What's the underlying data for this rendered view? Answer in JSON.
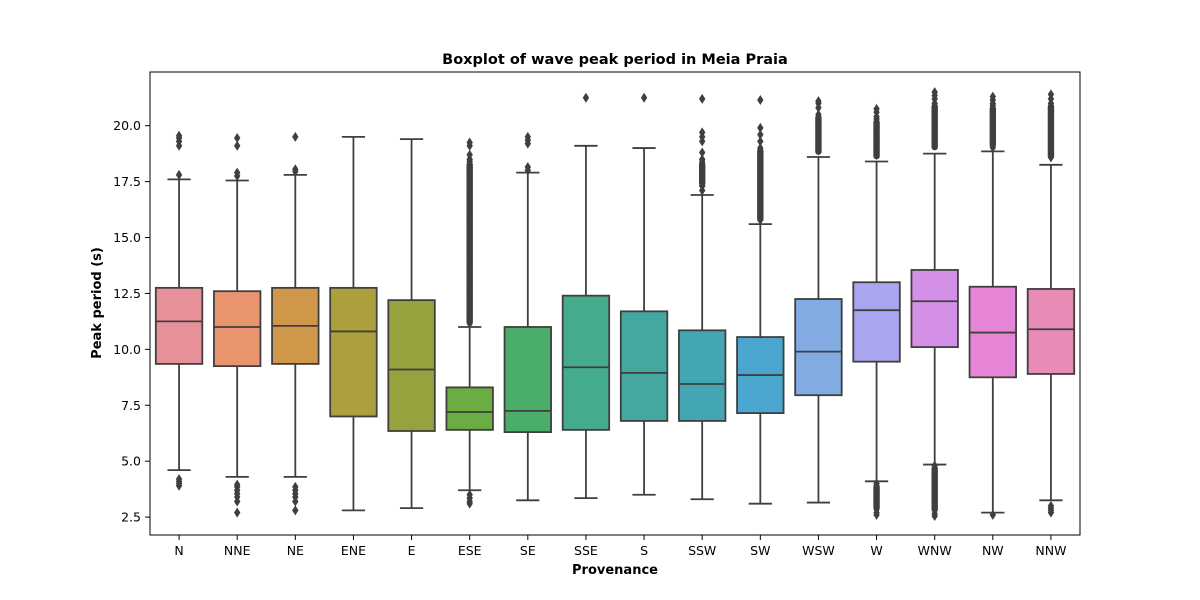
{
  "chart_data": {
    "type": "box",
    "title": "Boxplot of wave peak period in Meia Praia",
    "xlabel": "Provenance",
    "ylabel": "Peak period (s)",
    "ylim": [
      1.7,
      22.4
    ],
    "yticks": [
      2.5,
      5.0,
      7.5,
      10.0,
      12.5,
      15.0,
      17.5,
      20.0
    ],
    "ytick_labels": [
      "2.5",
      "5.0",
      "7.5",
      "10.0",
      "12.5",
      "15.0",
      "17.5",
      "20.0"
    ],
    "grid": false,
    "categories": [
      "N",
      "NNE",
      "NE",
      "ENE",
      "E",
      "ESE",
      "SE",
      "SSE",
      "S",
      "SSW",
      "SW",
      "WSW",
      "W",
      "WNW",
      "NW",
      "NNW"
    ],
    "colors": [
      "#e8909a",
      "#e8946f",
      "#d0964a",
      "#aca03c",
      "#96a23e",
      "#6aad42",
      "#4aae6a",
      "#45ab8d",
      "#44a8a0",
      "#44a6b2",
      "#4aa5cf",
      "#82abe2",
      "#a9a5ef",
      "#d490e6",
      "#e685d5",
      "#e98bb7"
    ],
    "boxes": [
      {
        "whislo": 4.6,
        "q1": 9.35,
        "med": 11.25,
        "q3": 12.75,
        "whishi": 17.6,
        "fliers_low": [
          3.9,
          4.0,
          4.1,
          4.2
        ],
        "fliers_high": [
          17.8,
          19.1,
          19.3,
          19.45,
          19.55
        ]
      },
      {
        "whislo": 4.3,
        "q1": 9.25,
        "med": 11.0,
        "q3": 12.6,
        "whishi": 17.55,
        "fliers_low": [
          2.7,
          3.2,
          3.4,
          3.55,
          3.7,
          3.85,
          3.95
        ],
        "fliers_high": [
          17.75,
          17.9,
          19.1,
          19.45
        ]
      },
      {
        "whislo": 4.3,
        "q1": 9.35,
        "med": 11.05,
        "q3": 12.75,
        "whishi": 17.8,
        "fliers_low": [
          2.8,
          3.2,
          3.4,
          3.55,
          3.7,
          3.85
        ],
        "fliers_high": [
          17.95,
          18.05,
          19.5
        ]
      },
      {
        "whislo": 2.8,
        "q1": 7.0,
        "med": 10.8,
        "q3": 12.75,
        "whishi": 19.5,
        "fliers_low": [],
        "fliers_high": []
      },
      {
        "whislo": 2.9,
        "q1": 6.35,
        "med": 9.1,
        "q3": 12.2,
        "whishi": 19.4,
        "fliers_low": [],
        "fliers_high": []
      },
      {
        "whislo": 3.7,
        "q1": 6.4,
        "med": 7.2,
        "q3": 8.3,
        "whishi": 11.0,
        "fliers_low": [
          3.1,
          3.2,
          3.35,
          3.5
        ],
        "fliers_high": [
          19.25,
          19.1,
          18.7,
          18.5
        ]
      },
      {
        "whislo": 3.25,
        "q1": 6.3,
        "med": 7.25,
        "q3": 11.0,
        "whishi": 17.9,
        "fliers_low": [],
        "fliers_high": [
          18.0,
          18.15,
          19.2,
          19.35,
          19.5
        ]
      },
      {
        "whislo": 3.35,
        "q1": 6.4,
        "med": 9.2,
        "q3": 12.4,
        "whishi": 19.1,
        "fliers_low": [],
        "fliers_high": [
          21.25
        ]
      },
      {
        "whislo": 3.5,
        "q1": 6.8,
        "med": 8.95,
        "q3": 11.7,
        "whishi": 19.0,
        "fliers_low": [],
        "fliers_high": [
          21.25
        ]
      },
      {
        "whislo": 3.3,
        "q1": 6.8,
        "med": 8.45,
        "q3": 10.85,
        "whishi": 16.9,
        "fliers_low": [],
        "fliers_high": [
          17.1,
          17.3,
          17.5,
          17.7,
          17.9,
          18.1,
          18.3,
          18.5,
          18.8,
          19.3,
          19.5,
          19.7,
          21.2
        ]
      },
      {
        "whislo": 3.1,
        "q1": 7.15,
        "med": 8.85,
        "q3": 10.55,
        "whishi": 15.6,
        "fliers_low": [],
        "fliers_high": [
          19.3,
          19.6,
          19.9,
          21.15
        ]
      },
      {
        "whislo": 3.15,
        "q1": 7.95,
        "med": 9.9,
        "q3": 12.25,
        "whishi": 18.6,
        "fliers_low": [],
        "fliers_high": [
          20.8,
          21.0,
          21.1
        ]
      },
      {
        "whislo": 4.1,
        "q1": 9.45,
        "med": 11.75,
        "q3": 13.0,
        "whishi": 18.4,
        "fliers_low": [
          2.6,
          2.7,
          2.85
        ],
        "fliers_high": [
          20.4,
          20.6,
          20.75
        ]
      },
      {
        "whislo": 4.85,
        "q1": 10.1,
        "med": 12.15,
        "q3": 13.55,
        "whishi": 18.75,
        "fliers_low": [
          2.55,
          2.65
        ],
        "fliers_high": [
          21.2,
          21.35,
          21.5
        ]
      },
      {
        "whislo": 2.7,
        "q1": 8.75,
        "med": 10.75,
        "q3": 12.8,
        "whishi": 18.85,
        "fliers_low": [
          2.6
        ],
        "fliers_high": [
          21.0,
          21.15,
          21.3
        ]
      },
      {
        "whislo": 3.25,
        "q1": 8.9,
        "med": 10.9,
        "q3": 12.7,
        "whishi": 18.25,
        "fliers_low": [
          2.7,
          2.8,
          2.9,
          3.0
        ],
        "fliers_high": [
          21.2,
          21.4
        ]
      }
    ],
    "dense_flier_ranges": [
      {
        "index": 5,
        "from": 11.1,
        "to": 18.4
      },
      {
        "index": 9,
        "from": 17.3,
        "to": 18.4
      },
      {
        "index": 10,
        "from": 15.7,
        "to": 19.0
      },
      {
        "index": 11,
        "from": 18.7,
        "to": 20.5
      },
      {
        "index": 12,
        "from": 18.5,
        "to": 20.3
      },
      {
        "index": 12,
        "from": 2.8,
        "to": 4.0
      },
      {
        "index": 13,
        "from": 18.9,
        "to": 21.0
      },
      {
        "index": 13,
        "from": 2.7,
        "to": 4.8
      },
      {
        "index": 14,
        "from": 19.0,
        "to": 20.9
      },
      {
        "index": 15,
        "from": 18.5,
        "to": 21.0
      }
    ]
  }
}
